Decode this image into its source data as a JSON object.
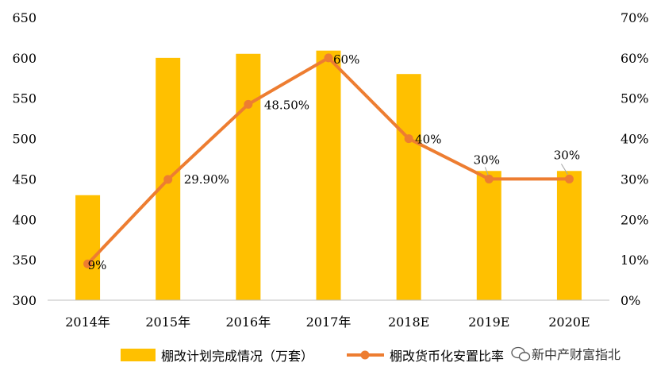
{
  "chart_data": {
    "type": "bar",
    "categories": [
      "2014年",
      "2015年",
      "2016年",
      "2017年",
      "2018E",
      "2019E",
      "2020E"
    ],
    "series": [
      {
        "name": "棚改计划完成情况（万套）",
        "type": "bar",
        "axis": "left",
        "color": "#FFC000",
        "values": [
          430,
          600,
          605,
          609,
          580,
          460,
          460
        ]
      },
      {
        "name": "棚改货币化安置比率",
        "type": "line",
        "axis": "right",
        "color": "#ED7D31",
        "values": [
          0.09,
          0.299,
          0.485,
          0.6,
          0.4,
          0.3,
          0.3
        ],
        "labels": [
          "9%",
          "29.90%",
          "48.50%",
          "60%",
          "40%",
          "30%",
          "30%"
        ]
      }
    ],
    "y_left": {
      "ylim": [
        300,
        650
      ],
      "ticks": [
        "300",
        "350",
        "400",
        "450",
        "500",
        "550",
        "600",
        "650"
      ]
    },
    "y_right": {
      "ylim": [
        0,
        0.7
      ],
      "ticks": [
        "0%",
        "10%",
        "20%",
        "30%",
        "40%",
        "50%",
        "60%",
        "70%"
      ]
    },
    "legend": "bottom",
    "grid": false
  },
  "watermark": {
    "text": "新中产财富指北",
    "icon": "wechat-icon"
  }
}
